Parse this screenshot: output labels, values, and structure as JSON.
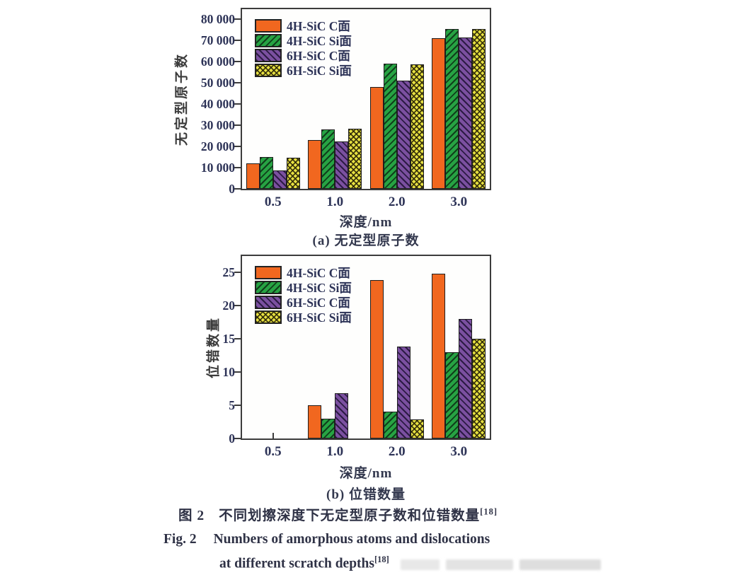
{
  "figure": {
    "caption_zh": {
      "label": "图 2",
      "text": "不同划擦深度下无定型原子数和位错数量",
      "ref": "[18]"
    },
    "caption_en": {
      "label": "Fig. 2",
      "line1": "Numbers of amorphous atoms and dislocations",
      "line2": "at different scratch depths",
      "ref": "[18]"
    }
  },
  "colors": {
    "orange": "#f1671f",
    "green": "#27a343",
    "purple": "#7b50a0",
    "yellow": "#e8e242",
    "axis": "#3c3c3c",
    "tick_text": "#2d3357"
  },
  "chart_data": [
    {
      "id": "a",
      "type": "bar",
      "caption": "(a) 无定型原子数",
      "xlabel": "深度/nm",
      "ylabel": "无定型原子数",
      "categories": [
        "0.5",
        "1.0",
        "2.0",
        "3.0"
      ],
      "series": [
        {
          "name": "4H-SiC C面",
          "color": "#f1671f",
          "pattern": "solid",
          "values": [
            12000,
            23000,
            48000,
            71000
          ]
        },
        {
          "name": "4H-SiC Si面",
          "color": "#27a343",
          "pattern": "hatch-fwd",
          "values": [
            15000,
            28000,
            59000,
            75400
          ]
        },
        {
          "name": "6H-SiC C面",
          "color": "#7b50a0",
          "pattern": "hatch-back",
          "values": [
            8700,
            22500,
            51000,
            71300
          ]
        },
        {
          "name": "6H-SiC Si面",
          "color": "#e8e242",
          "pattern": "dots",
          "values": [
            14800,
            28500,
            58700,
            75500
          ]
        }
      ],
      "ylim": [
        0,
        84700
      ],
      "yticks": [
        0,
        10000,
        20000,
        30000,
        40000,
        50000,
        60000,
        70000,
        80000
      ],
      "ytick_labels": [
        "0",
        "10 000",
        "20 000",
        "30 000",
        "40 000",
        "50 000",
        "60 000",
        "70 000",
        "80 000"
      ],
      "legend_position": "top-left",
      "grid": false
    },
    {
      "id": "b",
      "type": "bar",
      "caption": "(b) 位错数量",
      "xlabel": "深度/nm",
      "ylabel": "位错数量",
      "categories": [
        "0.5",
        "1.0",
        "2.0",
        "3.0"
      ],
      "series": [
        {
          "name": "4H-SiC C面",
          "color": "#f1671f",
          "pattern": "solid",
          "values": [
            0,
            5,
            23.9,
            24.8
          ]
        },
        {
          "name": "4H-SiC Si面",
          "color": "#27a343",
          "pattern": "hatch-fwd",
          "values": [
            0,
            3,
            4,
            13
          ]
        },
        {
          "name": "6H-SiC C面",
          "color": "#7b50a0",
          "pattern": "hatch-back",
          "values": [
            0,
            6.8,
            13.9,
            18
          ]
        },
        {
          "name": "6H-SiC Si面",
          "color": "#e8e242",
          "pattern": "dots",
          "values": [
            0,
            0,
            2.9,
            15
          ]
        }
      ],
      "ylim": [
        0,
        27.5
      ],
      "yticks": [
        0,
        5,
        10,
        15,
        20,
        25
      ],
      "ytick_labels": [
        "0",
        "5",
        "10",
        "15",
        "20",
        "25"
      ],
      "legend_position": "top-left",
      "grid": false
    }
  ]
}
